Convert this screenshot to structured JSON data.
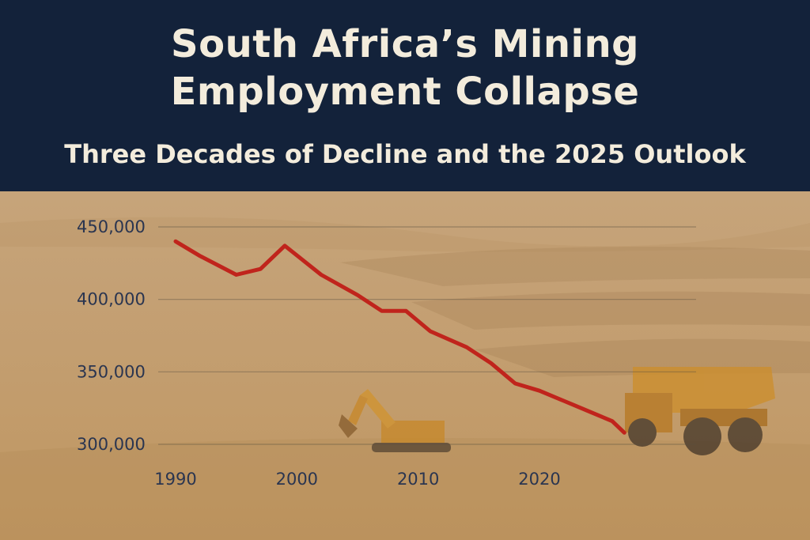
{
  "header": {
    "title_line1": "South Africa’s Mining",
    "title_line2": "Employment Collapse",
    "subtitle": "Three Decades of Decline and the 2025 Outlook"
  },
  "colors": {
    "header_bg": "#13223a",
    "line": "#c0241c",
    "axis_text": "#2a3550"
  },
  "chart_data": {
    "type": "line",
    "title": "South Africa’s Mining Employment Collapse",
    "subtitle": "Three Decades of Decline and the 2025 Outlook",
    "xlabel": "",
    "ylabel": "",
    "x_ticks": [
      "1990",
      "2000",
      "2010",
      "2020"
    ],
    "y_ticks": [
      "300,000",
      "350,000",
      "400,000",
      "450,000"
    ],
    "y_tick_values": [
      300000,
      350000,
      400000,
      450000
    ],
    "xlim": [
      1989,
      2029
    ],
    "ylim": [
      290000,
      460000
    ],
    "grid": true,
    "series": [
      {
        "x": [
          1990,
          1992,
          1995,
          1997,
          1999,
          2002,
          2005,
          2007,
          2009,
          2011,
          2014,
          2016,
          2018,
          2020,
          2022,
          2024,
          2026,
          2027
        ],
        "values": [
          440000,
          430000,
          417000,
          421000,
          437000,
          417000,
          403000,
          392000,
          392000,
          378000,
          367000,
          356000,
          342000,
          337000,
          330000,
          323000,
          316000,
          308000
        ]
      }
    ]
  }
}
